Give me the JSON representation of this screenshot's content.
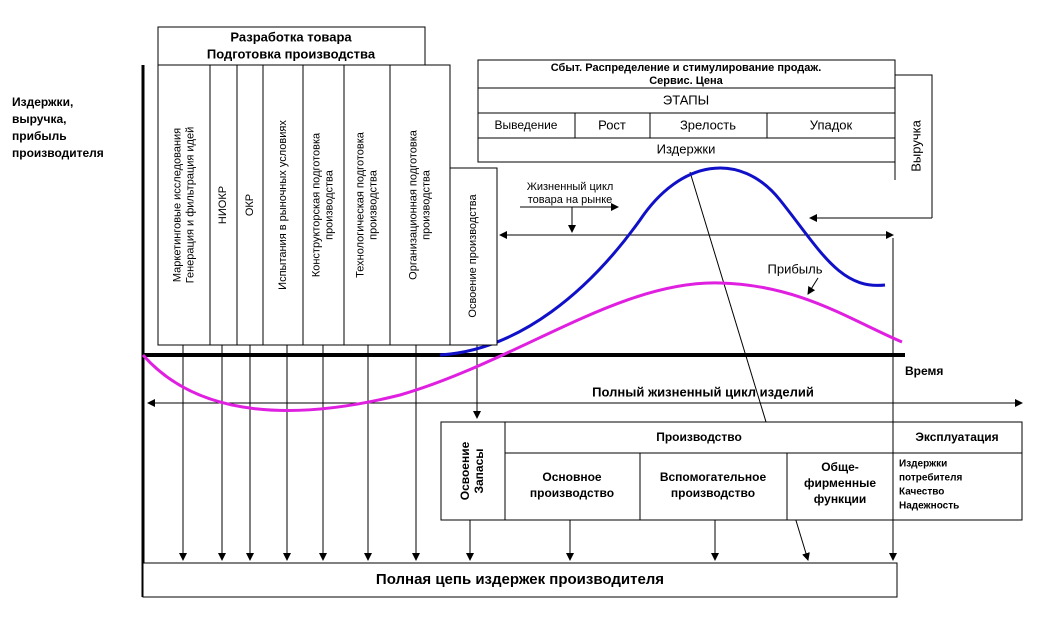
{
  "y_axis_label": [
    "Издержки,",
    "выручка,",
    "прибыль",
    "производителя"
  ],
  "time_label": "Время",
  "development": {
    "title": [
      "Разработка товара",
      "Подготовка производства"
    ],
    "columns": [
      [
        "Маркетинговые исследования",
        "Генерация и фильтрация идей"
      ],
      [
        "НИОКР"
      ],
      [
        "ОКР"
      ],
      [
        "Испытания в рыночных условиях"
      ],
      [
        "Конструкторская подготовка",
        "производства"
      ],
      [
        "Технологическая подготовка",
        "производства"
      ],
      [
        "Организационная подготовка",
        "производства"
      ],
      [
        "Освоение производства"
      ]
    ]
  },
  "sales": {
    "title": [
      "Сбыт.  Распределение и стимулирование продаж.",
      "Сервис. Цена"
    ],
    "stages_header": "ЭТАПЫ",
    "stages": [
      "Выведение",
      "Рост",
      "Зрелость",
      "Упадок"
    ],
    "costs": "Издержки"
  },
  "revenue_label": "Выручка",
  "market_cycle": [
    "Жизненный цикл",
    "товара на рынке"
  ],
  "profit_label": "Прибыль",
  "full_cycle_label": "Полный жизненный цикл изделий",
  "bottom_table": {
    "stocks": [
      "Освоение",
      "Запасы"
    ],
    "production": "Производство",
    "exploitation": "Эксплуатация",
    "sub": [
      [
        "Основное",
        "производство"
      ],
      [
        "Вспомогательное",
        "производство"
      ],
      [
        "Обще-",
        "фирменные",
        "функции"
      ]
    ],
    "consumer": [
      "Издержки",
      "потребителя",
      "Качество",
      "Надежность"
    ]
  },
  "total_chain": "Полная цепь издержек производителя"
}
